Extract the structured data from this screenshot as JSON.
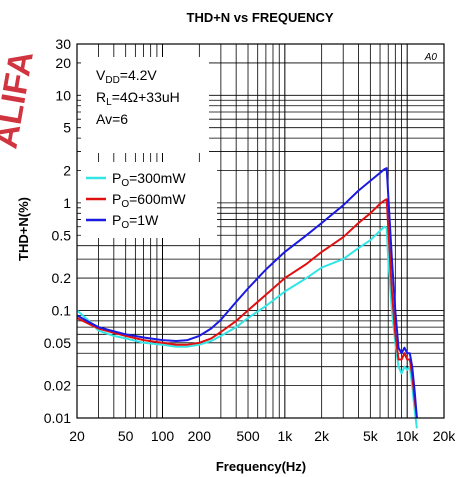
{
  "chart_data": {
    "type": "line",
    "title": "THD+N vs FREQUENCY",
    "xlabel": "Frequency(Hz)",
    "ylabel": "THD+N(%)",
    "x_scale": "log",
    "y_scale": "log",
    "xlim": [
      20,
      20000
    ],
    "ylim": [
      0.01,
      30
    ],
    "grid": true,
    "legend_position": "left",
    "x_ticks": [
      "20",
      "50",
      "100",
      "200",
      "500",
      "1k",
      "2k",
      "5k",
      "10k",
      "20k"
    ],
    "y_ticks": [
      "0.01",
      "0.02",
      "0.05",
      "0.1",
      "0.2",
      "0.5",
      "1",
      "2",
      "5",
      "10",
      "20",
      "30"
    ],
    "conditions": [
      {
        "main": "V",
        "sub": "DD",
        "rest": "=4.2V"
      },
      {
        "main": "R",
        "sub": "L",
        "rest": "=4Ω+33uH"
      },
      {
        "main": "Av=6",
        "sub": "",
        "rest": ""
      }
    ],
    "corner_mark": "A0",
    "series": [
      {
        "name": "PO=300mW",
        "label_main": "P",
        "label_sub": "O",
        "label_rest": "=300mW",
        "color": "#33e5e5",
        "x": [
          20,
          25,
          30,
          40,
          50,
          70,
          100,
          130,
          160,
          200,
          250,
          300,
          400,
          500,
          700,
          1000,
          1500,
          2000,
          3000,
          4000,
          5000,
          6000,
          6500,
          6800,
          7000,
          7500,
          8000,
          8500,
          9000,
          9500,
          10000,
          10500,
          11000,
          11500,
          12000
        ],
        "y": [
          0.1,
          0.08,
          0.065,
          0.058,
          0.055,
          0.05,
          0.048,
          0.046,
          0.046,
          0.048,
          0.052,
          0.058,
          0.07,
          0.085,
          0.11,
          0.15,
          0.2,
          0.25,
          0.3,
          0.38,
          0.45,
          0.55,
          0.6,
          0.58,
          0.3,
          0.1,
          0.05,
          0.03,
          0.026,
          0.03,
          0.028,
          0.03,
          0.02,
          0.012,
          0.008
        ]
      },
      {
        "name": "PO=600mW",
        "label_main": "P",
        "label_sub": "O",
        "label_rest": "=600mW",
        "color": "#e01010",
        "x": [
          20,
          25,
          30,
          40,
          50,
          70,
          100,
          130,
          160,
          200,
          250,
          300,
          400,
          500,
          700,
          1000,
          1500,
          2000,
          3000,
          4000,
          5000,
          6000,
          6500,
          6800,
          7000,
          7500,
          8000,
          8500,
          9000,
          9500,
          10000,
          10500,
          11000,
          11500,
          12000
        ],
        "y": [
          0.085,
          0.075,
          0.068,
          0.062,
          0.058,
          0.053,
          0.05,
          0.048,
          0.048,
          0.05,
          0.055,
          0.063,
          0.08,
          0.1,
          0.14,
          0.2,
          0.27,
          0.35,
          0.48,
          0.65,
          0.8,
          0.98,
          1.05,
          1.08,
          0.6,
          0.15,
          0.06,
          0.035,
          0.035,
          0.04,
          0.035,
          0.035,
          0.025,
          0.015,
          0.01
        ]
      },
      {
        "name": "PO=1W",
        "label_main": "P",
        "label_sub": "O",
        "label_rest": "=1W",
        "color": "#1a1ae0",
        "x": [
          20,
          25,
          30,
          40,
          50,
          70,
          100,
          130,
          160,
          200,
          250,
          300,
          400,
          500,
          700,
          1000,
          1500,
          2000,
          3000,
          4000,
          5000,
          6000,
          6500,
          6800,
          7000,
          7500,
          8000,
          8500,
          9000,
          9500,
          10000,
          10500,
          11000,
          11500,
          12000
        ],
        "y": [
          0.09,
          0.078,
          0.07,
          0.064,
          0.06,
          0.056,
          0.053,
          0.052,
          0.053,
          0.058,
          0.068,
          0.082,
          0.12,
          0.16,
          0.24,
          0.35,
          0.5,
          0.65,
          0.95,
          1.3,
          1.6,
          1.9,
          2.05,
          2.1,
          1.2,
          0.3,
          0.1,
          0.045,
          0.04,
          0.045,
          0.04,
          0.04,
          0.03,
          0.018,
          0.01
        ]
      }
    ]
  }
}
